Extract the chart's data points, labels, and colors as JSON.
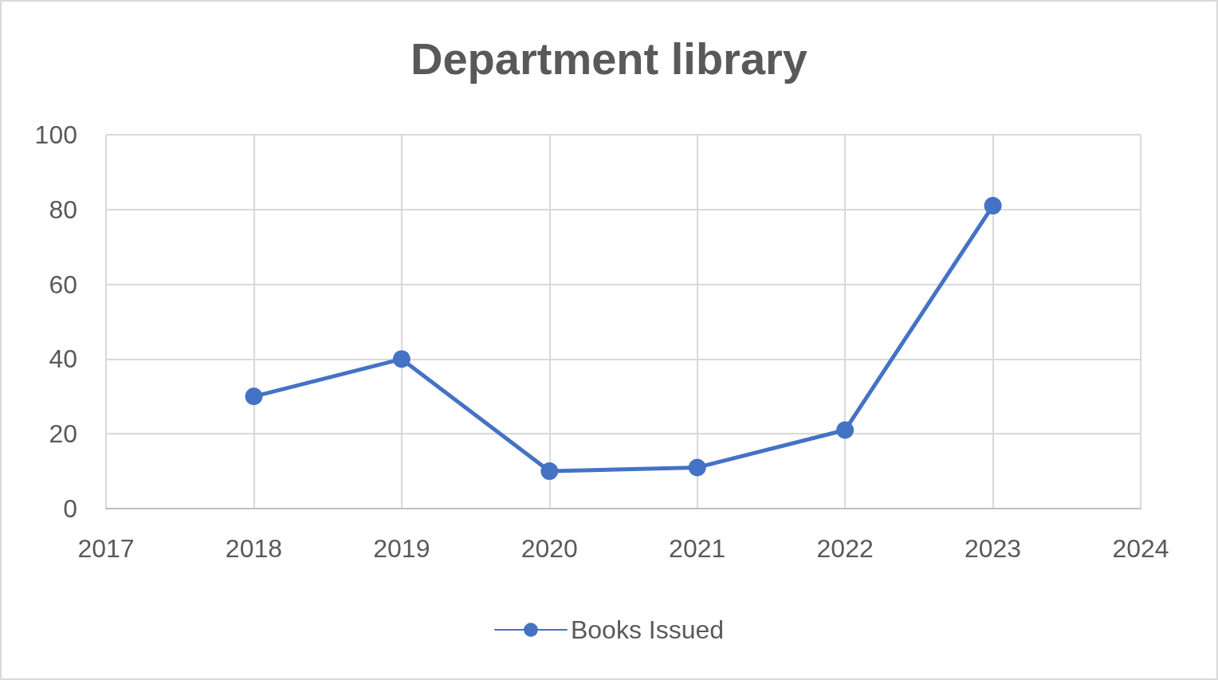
{
  "chart_data": {
    "type": "line",
    "title": "Department library",
    "x": [
      2018,
      2019,
      2020,
      2021,
      2022,
      2023
    ],
    "series": [
      {
        "name": "Books Issued",
        "color": "#4472c4",
        "values": [
          30,
          40,
          10,
          11,
          21,
          81
        ]
      }
    ],
    "xlim": [
      2017,
      2024
    ],
    "xticks": [
      2017,
      2018,
      2019,
      2020,
      2021,
      2022,
      2023,
      2024
    ],
    "ylim": [
      0,
      100
    ],
    "yticks": [
      0,
      20,
      40,
      60,
      80,
      100
    ],
    "grid": true,
    "legend": "bottom",
    "marker": "circle",
    "line_style": "solid"
  }
}
